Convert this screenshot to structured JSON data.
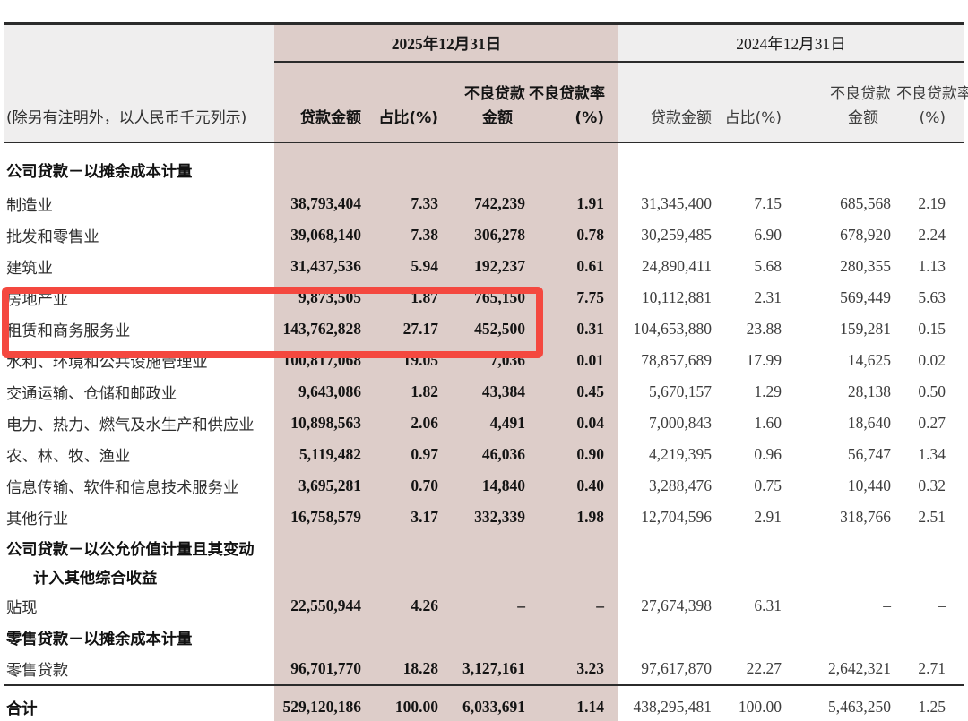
{
  "header": {
    "date_2025": "2025年12月31日",
    "date_2024": "2024年12月31日",
    "note": "(除另有注明外，以人民币千元列示)",
    "col_loan": "贷款金额",
    "col_pct": "占比(%)",
    "col_npl_1": "不良贷款",
    "col_npl_2": "金额",
    "col_ratio_1": "不良贷款率",
    "col_ratio_2": "(%)"
  },
  "highlight": {
    "color": "#f4483f",
    "rows": [
      "租赁和商务服务业",
      "水利、环境和公共设施管理业"
    ]
  },
  "colors": {
    "pink_band": "#ddcdc9",
    "header_gray": "#efeeee",
    "rule": "#2b2b2b"
  },
  "rows": [
    {
      "type": "section",
      "label": "公司贷款－以摊余成本计量"
    },
    {
      "type": "data",
      "label": "制造业",
      "v25": [
        "38,793,404",
        "7.33",
        "742,239",
        "1.91"
      ],
      "v24": [
        "31,345,400",
        "7.15",
        "685,568",
        "2.19"
      ]
    },
    {
      "type": "data",
      "label": "批发和零售业",
      "v25": [
        "39,068,140",
        "7.38",
        "306,278",
        "0.78"
      ],
      "v24": [
        "30,259,485",
        "6.90",
        "678,920",
        "2.24"
      ]
    },
    {
      "type": "data",
      "label": "建筑业",
      "v25": [
        "31,437,536",
        "5.94",
        "192,237",
        "0.61"
      ],
      "v24": [
        "24,890,411",
        "5.68",
        "280,355",
        "1.13"
      ]
    },
    {
      "type": "data",
      "label": "房地产业",
      "v25": [
        "9,873,505",
        "1.87",
        "765,150",
        "7.75"
      ],
      "v24": [
        "10,112,881",
        "2.31",
        "569,449",
        "5.63"
      ]
    },
    {
      "type": "data",
      "label": "租赁和商务服务业",
      "highlighted": true,
      "v25": [
        "143,762,828",
        "27.17",
        "452,500",
        "0.31"
      ],
      "v24": [
        "104,653,880",
        "23.88",
        "159,281",
        "0.15"
      ]
    },
    {
      "type": "data",
      "label": "水利、环境和公共设施管理业",
      "highlighted": true,
      "v25": [
        "100,817,068",
        "19.05",
        "7,036",
        "0.01"
      ],
      "v24": [
        "78,857,689",
        "17.99",
        "14,625",
        "0.02"
      ]
    },
    {
      "type": "data",
      "label": "交通运输、仓储和邮政业",
      "v25": [
        "9,643,086",
        "1.82",
        "43,384",
        "0.45"
      ],
      "v24": [
        "5,670,157",
        "1.29",
        "28,138",
        "0.50"
      ]
    },
    {
      "type": "data",
      "label": "电力、热力、燃气及水生产和供应业",
      "v25": [
        "10,898,563",
        "2.06",
        "4,491",
        "0.04"
      ],
      "v24": [
        "7,000,843",
        "1.60",
        "18,640",
        "0.27"
      ]
    },
    {
      "type": "data",
      "label": "农、林、牧、渔业",
      "v25": [
        "5,119,482",
        "0.97",
        "46,036",
        "0.90"
      ],
      "v24": [
        "4,219,395",
        "0.96",
        "56,747",
        "1.34"
      ]
    },
    {
      "type": "data",
      "label": "信息传输、软件和信息技术服务业",
      "v25": [
        "3,695,281",
        "0.70",
        "14,840",
        "0.40"
      ],
      "v24": [
        "3,288,476",
        "0.75",
        "10,440",
        "0.32"
      ]
    },
    {
      "type": "data",
      "label": "其他行业",
      "v25": [
        "16,758,579",
        "3.17",
        "332,339",
        "1.98"
      ],
      "v24": [
        "12,704,596",
        "2.91",
        "318,766",
        "2.51"
      ]
    },
    {
      "type": "section",
      "label": "公司贷款－以公允价值计量且其变动",
      "size": "half-a"
    },
    {
      "type": "section",
      "label": "计入其他综合收益",
      "indent": true,
      "size": "half-b"
    },
    {
      "type": "data",
      "label": "贴现",
      "v25": [
        "22,550,944",
        "4.26",
        "–",
        "–"
      ],
      "v24": [
        "27,674,398",
        "6.31",
        "–",
        "–"
      ]
    },
    {
      "type": "section",
      "label": "零售贷款－以摊余成本计量"
    },
    {
      "type": "data",
      "label": "零售贷款",
      "v25": [
        "96,701,770",
        "18.28",
        "3,127,161",
        "3.23"
      ],
      "v24": [
        "97,617,870",
        "22.27",
        "2,642,321",
        "2.71"
      ]
    },
    {
      "type": "total",
      "label": "合计",
      "v25": [
        "529,120,186",
        "100.00",
        "6,033,691",
        "1.14"
      ],
      "v24": [
        "438,295,481",
        "100.00",
        "5,463,250",
        "1.25"
      ]
    }
  ]
}
